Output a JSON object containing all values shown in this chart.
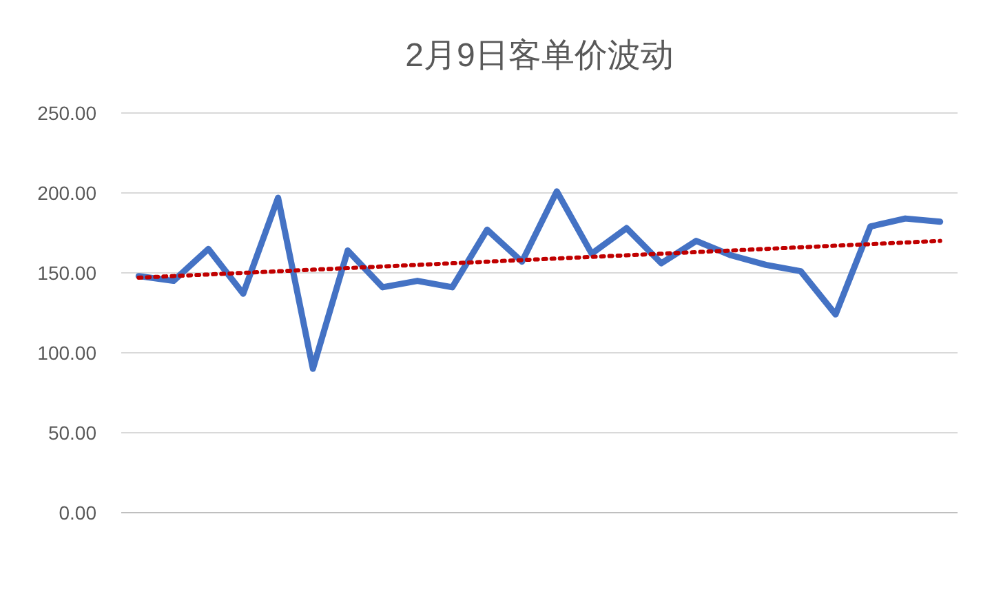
{
  "chart_data": {
    "type": "line",
    "title": "2月9日客单价波动",
    "categories": [
      null,
      null,
      null,
      null,
      null,
      null,
      null,
      null,
      null,
      null,
      null,
      null,
      null,
      null,
      null,
      null,
      null,
      null,
      null,
      null,
      null,
      null,
      null,
      null
    ],
    "series": [
      {
        "color": "#4472c4",
        "line_style": "solid",
        "values": [
          148,
          145,
          165,
          137,
          197,
          90,
          164,
          141,
          145,
          141,
          177,
          157,
          201,
          162,
          178,
          156,
          170,
          161,
          155,
          151,
          124,
          179,
          184,
          182
        ]
      },
      {
        "color": "#c00000",
        "line_style": "dotted",
        "values": [
          147,
          148,
          149,
          150,
          151,
          152,
          153,
          154,
          155,
          156,
          157,
          158,
          159,
          160,
          161,
          162,
          163,
          164,
          165,
          166,
          167,
          168,
          169,
          170
        ]
      }
    ],
    "ylim": [
      0,
      250
    ],
    "yticks": [
      {
        "value": 0,
        "label": "0.00"
      },
      {
        "value": 50,
        "label": "50.00"
      },
      {
        "value": 100,
        "label": "100.00"
      },
      {
        "value": 150,
        "label": "150.00"
      },
      {
        "value": 200,
        "label": "200.00"
      },
      {
        "value": 250,
        "label": "250.00"
      }
    ],
    "grid": "y",
    "marker": "none"
  }
}
